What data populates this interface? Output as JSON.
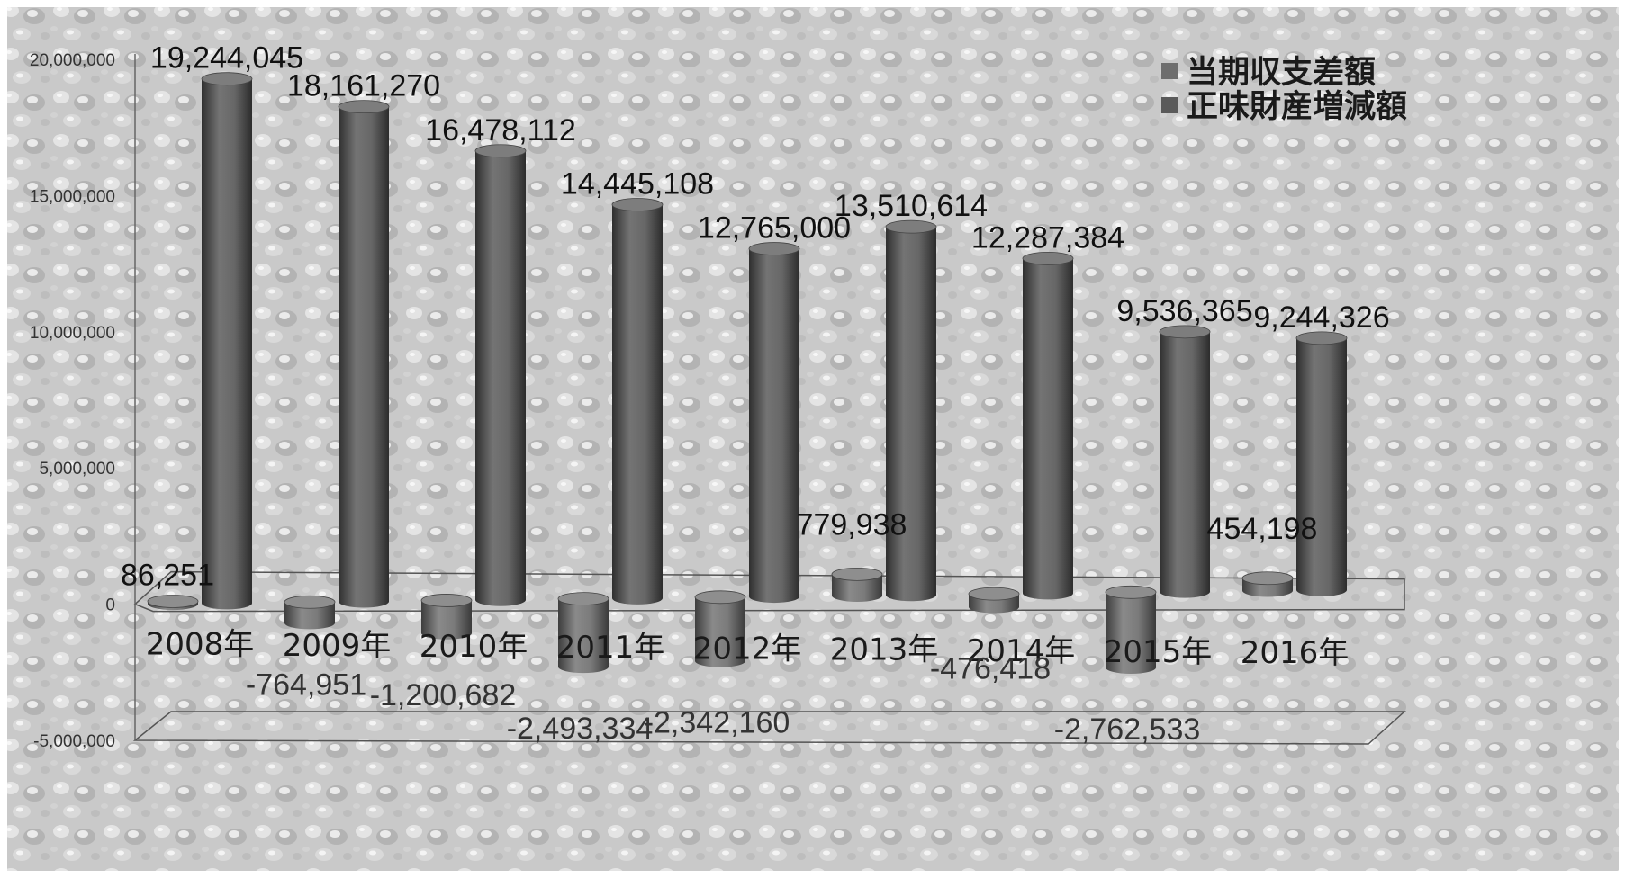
{
  "chart_data": {
    "type": "bar",
    "title": "",
    "xlabel": "",
    "ylabel": "",
    "categories": [
      "2008年",
      "2009年",
      "2010年",
      "2011年",
      "2012年",
      "2013年",
      "2014年",
      "2015年",
      "2016年"
    ],
    "series": [
      {
        "name": "当期収支差額",
        "values": [
          86251,
          -764951,
          -1200682,
          -2493334,
          -2342160,
          779938,
          -476418,
          -2762533,
          454198
        ],
        "labels": [
          "86,251",
          "-764,951",
          "-1,200,682",
          "-2,493,334",
          "-2,342,160",
          "779,938",
          "-476,418",
          "-2,762,533",
          "454,198"
        ],
        "color": "#6e6e6e"
      },
      {
        "name": "正味財産増減額",
        "values": [
          19244045,
          18161270,
          16478112,
          14445108,
          12765000,
          13510614,
          12287384,
          9536365,
          9244326
        ],
        "labels": [
          "19,244,045",
          "18,161,270",
          "16,478,112",
          "14,445,108",
          "12,765,000",
          "13,510,614",
          "12,287,384",
          "9,536,365",
          "9,244,326"
        ],
        "color": "#5a5a5a"
      }
    ],
    "yticks": [
      {
        "value": 20000000,
        "label": "20,000,000"
      },
      {
        "value": 15000000,
        "label": "15,000,000"
      },
      {
        "value": 10000000,
        "label": "10,000,000"
      },
      {
        "value": 5000000,
        "label": "5,000,000"
      },
      {
        "value": 0,
        "label": "0"
      },
      {
        "value": -5000000,
        "label": "-5,000,000"
      }
    ],
    "ylim": [
      -5000000,
      20000000
    ],
    "grid": false,
    "legend_position": "top-right",
    "style": "3d-cylinder",
    "background": "water-droplet texture, grayscale"
  }
}
